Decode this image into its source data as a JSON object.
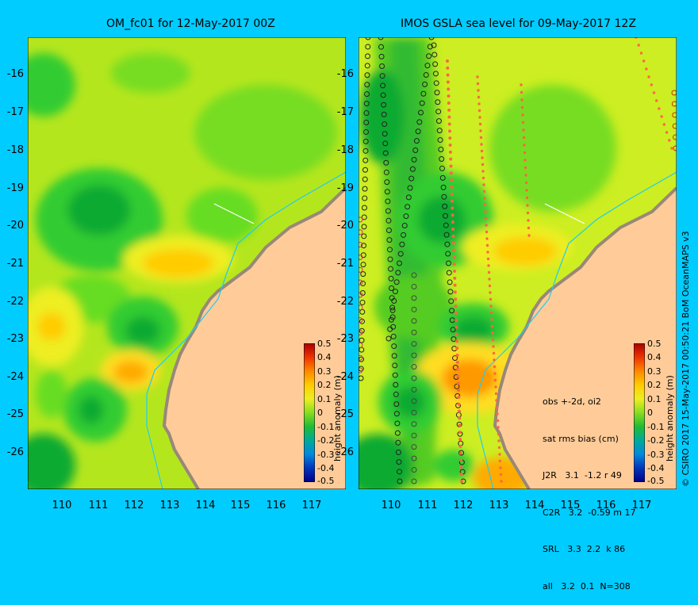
{
  "left_panel": {
    "title": "OM_fc01 for 12-May-2017 00Z"
  },
  "right_panel": {
    "title": "IMOS GSLA sea level  for 09-May-2017 12Z",
    "stats": {
      "lines": [
        "obs +-2d, oi2",
        "sat rms bias (cm)",
        "J2R   3.1  -1.2 r 49",
        "C2R   3.2  -0.59 m 17",
        "SRL   3.3  2.2  k 86",
        "all   3.2  0.1  N=308"
      ]
    }
  },
  "axes": {
    "latitude_labels": [
      "-16",
      "-17",
      "-18",
      "-19",
      "-20",
      "-21",
      "-22",
      "-23",
      "-24",
      "-25",
      "-26"
    ],
    "longitude_labels": [
      "110",
      "111",
      "112",
      "113",
      "114",
      "115",
      "116",
      "117"
    ]
  },
  "colorbar": {
    "title": "height anomaly (m)",
    "ticks": [
      "0.5",
      "0.4",
      "0.3",
      "0.2",
      "0.1",
      "0",
      "-0.1",
      "-0.2",
      "-0.3",
      "-0.4",
      "-0.5"
    ]
  },
  "credit": "© CSIRO 2017  15-May-2017 00:50:21 BoM OceanMAPS v3",
  "colors": {
    "background": "#00ccff",
    "land": "#ffcc99",
    "coastline": "#998877",
    "anomaly_neg_strong": "#009933",
    "anomaly_neg": "#33cc33",
    "anomaly_zero": "#99ee22",
    "anomaly_pos_weak": "#ccee22",
    "anomaly_pos": "#ffcc00",
    "anomaly_pos_strong": "#ff9900"
  }
}
